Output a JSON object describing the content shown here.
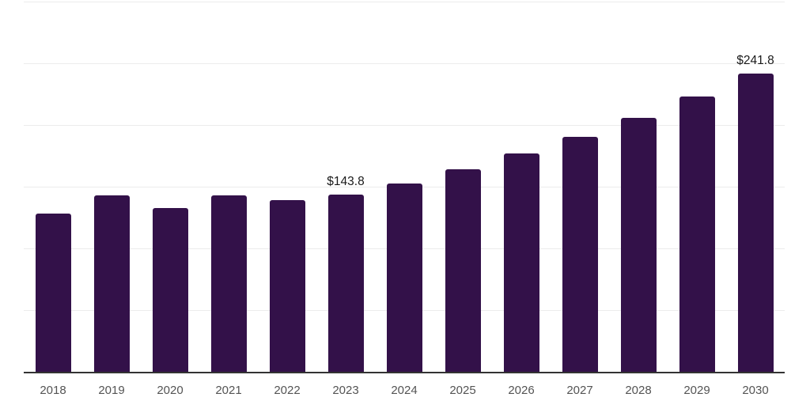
{
  "chart_data": {
    "type": "bar",
    "title": "",
    "xlabel": "",
    "ylabel": "",
    "categories": [
      "2018",
      "2019",
      "2020",
      "2021",
      "2022",
      "2023",
      "2024",
      "2025",
      "2026",
      "2027",
      "2028",
      "2029",
      "2030"
    ],
    "values": [
      128.5,
      143.2,
      133.0,
      142.7,
      138.8,
      143.8,
      152.8,
      163.9,
      176.7,
      190.1,
      205.7,
      223.2,
      241.8
    ],
    "labeled_points": [
      {
        "category": "2023",
        "label": "$143.8"
      },
      {
        "category": "2030",
        "label": "$241.8"
      }
    ],
    "ylim": [
      0,
      300
    ],
    "gridline_values": [
      50,
      100,
      150,
      200,
      250,
      300
    ],
    "grid": "horizontal-only",
    "legend_position": "none",
    "y_axis_tick_labels_visible": false,
    "colors": {
      "bar_fill": "#331149",
      "axis_line": "#333333",
      "gridline": "#ececec",
      "x_tick_label": "#545454",
      "value_label": "#1a1a1a",
      "background": "#ffffff"
    }
  }
}
